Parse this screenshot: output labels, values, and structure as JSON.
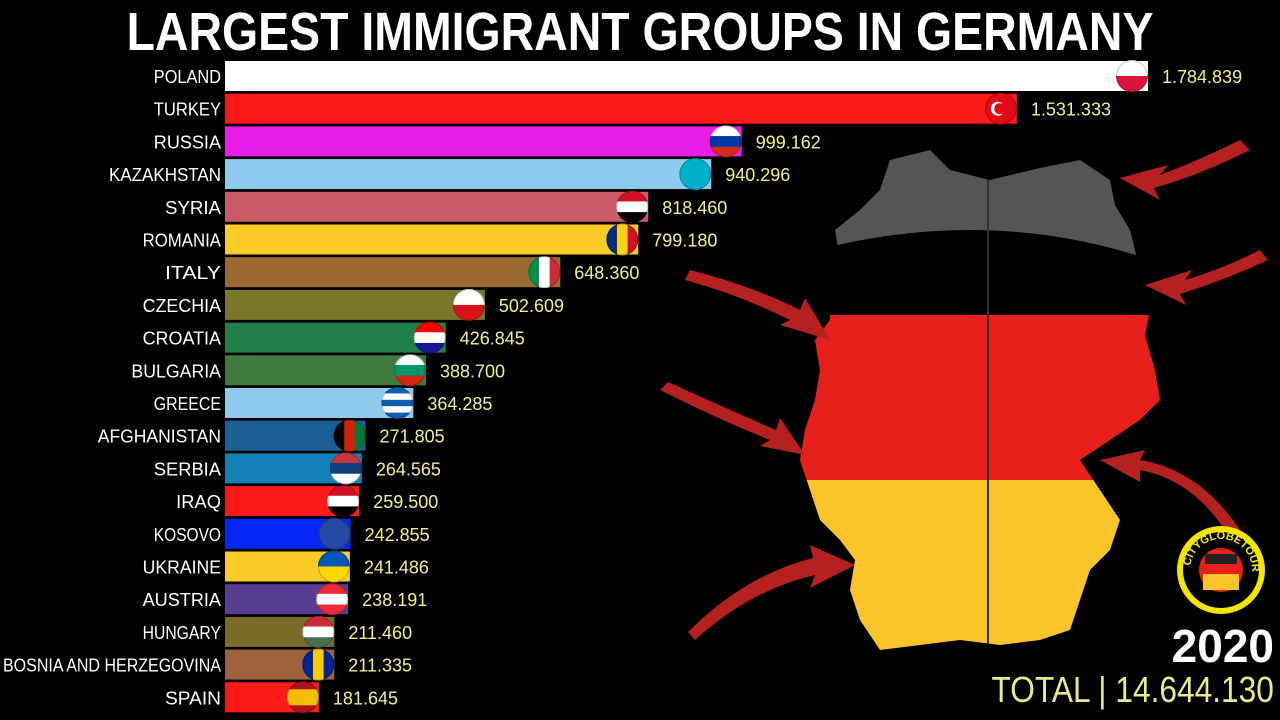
{
  "title": "LARGEST IMMIGRANT GROUPS IN GERMANY",
  "year": "2020",
  "total": "TOTAL | 14.644.130",
  "logo_text": "CITYGLOBETOUR",
  "colors": {
    "value_text": "#f3f08a",
    "total_text": "#e8eb8a",
    "background": "#000000"
  },
  "chart_data": {
    "type": "bar",
    "orientation": "horizontal",
    "title": "LARGEST IMMIGRANT GROUPS IN GERMANY",
    "categories": [
      "POLAND",
      "TURKEY",
      "RUSSIA",
      "KAZAKHSTAN",
      "SYRIA",
      "ROMANIA",
      "ITALY",
      "CZECHIA",
      "CROATIA",
      "BULGARIA",
      "GREECE",
      "AFGHANISTAN",
      "SERBIA",
      "IRAQ",
      "KOSOVO",
      "UKRAINE",
      "AUSTRIA",
      "HUNGARY",
      "BOSNIA AND HERZEGOVINA",
      "SPAIN"
    ],
    "values": [
      1784839,
      1531333,
      999162,
      940296,
      818460,
      799180,
      648360,
      502609,
      426845,
      388700,
      364285,
      271805,
      264565,
      259500,
      242855,
      241486,
      238191,
      211460,
      211335,
      181645
    ],
    "value_labels": [
      "1.784.839",
      "1.531.333",
      "999.162",
      "940.296",
      "818.460",
      "799.180",
      "648.360",
      "502.609",
      "426.845",
      "388.700",
      "364.285",
      "271.805",
      "264.565",
      "259.500",
      "242.855",
      "241.486",
      "238.191",
      "211.460",
      "211.335",
      "181.645"
    ],
    "bar_colors": [
      "#ffffff",
      "#ff1a1a",
      "#e81ee8",
      "#8ecbee",
      "#c95a66",
      "#fbcb27",
      "#9c6a31",
      "#7a7529",
      "#218049",
      "#3e7a39",
      "#8ecbee",
      "#1c5f96",
      "#1380b8",
      "#ff1a1a",
      "#0626f5",
      "#fbcb27",
      "#573e92",
      "#7a6c28",
      "#a0623c",
      "#ff1a1a"
    ],
    "flags": [
      "poland-flag",
      "turkey-flag",
      "russia-flag",
      "kazakhstan-flag",
      "syria-flag",
      "romania-flag",
      "italy-flag",
      "czechia-flag",
      "croatia-flag",
      "bulgaria-flag",
      "greece-flag",
      "afghanistan-flag",
      "serbia-flag",
      "iraq-flag",
      "kosovo-flag",
      "ukraine-flag",
      "austria-flag",
      "hungary-flag",
      "bosnia-flag",
      "spain-flag"
    ],
    "xlim": [
      0,
      1784839
    ],
    "grid": false,
    "legend": "none"
  }
}
